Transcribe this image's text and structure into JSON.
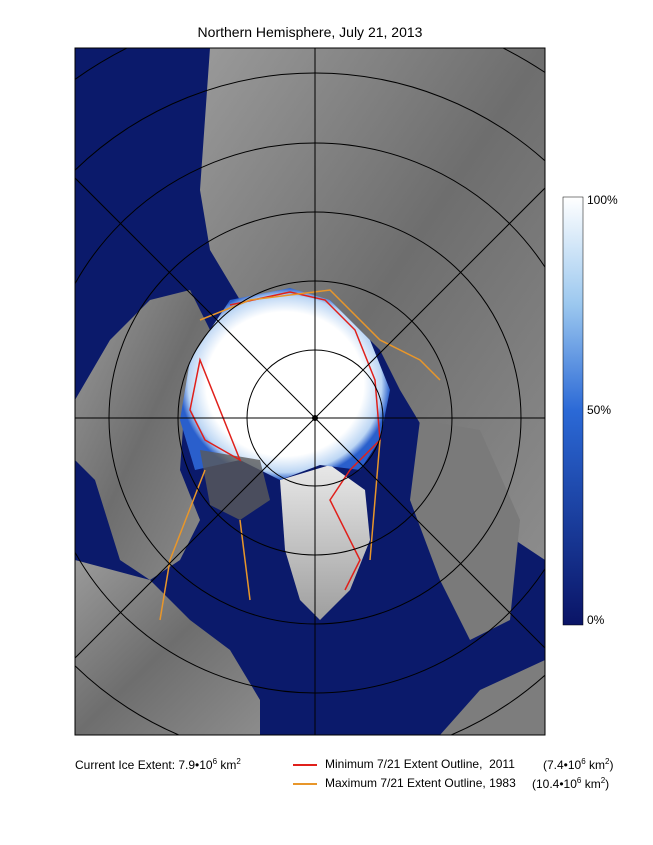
{
  "title": "Northern Hemisphere, July 21, 2013",
  "colorbar": {
    "labels": [
      "100%",
      "50%",
      "0%"
    ]
  },
  "current_extent": {
    "text": "Current Ice Extent: 7.9•10",
    "exponent": "6",
    "unit": " km",
    "unit_exponent": "2"
  },
  "legend": [
    {
      "label": "Minimum 7/21 Extent Outline,  2011",
      "color": "#e0201b",
      "extent": "(7.4•10",
      "exponent": "6",
      "unit": " km",
      "unit_exponent": "2",
      "close": ")"
    },
    {
      "label": "Maximum 7/21 Extent Outline, 1983",
      "color": "#e8962a",
      "extent": "(10.4•10",
      "exponent": "6",
      "unit": " km",
      "unit_exponent": "2",
      "close": ")"
    }
  ]
}
